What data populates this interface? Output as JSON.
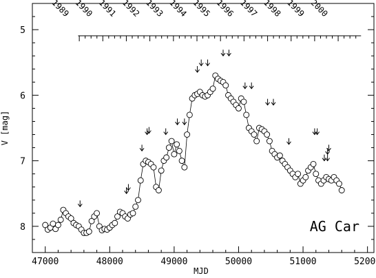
{
  "chart_data": {
    "type": "scatter",
    "xlabel": "MJD",
    "ylabel": "V [mag]",
    "xlim": [
      46800,
      52100
    ],
    "ylim": [
      8.4,
      4.6
    ],
    "y_inverted": true,
    "xticks": [
      47000,
      48000,
      49000,
      50000,
      51000,
      52000
    ],
    "xtick_labels": [
      "47000",
      "48000",
      "49000",
      "50000",
      "51000",
      "52000"
    ],
    "yticks": [
      5,
      6,
      7,
      8
    ],
    "ytick_labels": [
      "5",
      "6",
      "7",
      "8"
    ],
    "annotation": "AG Car",
    "top_axis": {
      "line_x": [
        47510,
        51900
      ],
      "years": [
        {
          "label": "1989",
          "mjd": 47528
        },
        {
          "label": "1990",
          "mjd": 47893
        },
        {
          "label": "1991",
          "mjd": 48258
        },
        {
          "label": "1992",
          "mjd": 48623
        },
        {
          "label": "1993",
          "mjd": 48989
        },
        {
          "label": "1994",
          "mjd": 49354
        },
        {
          "label": "1995",
          "mjd": 49719
        },
        {
          "label": "1996",
          "mjd": 50084
        },
        {
          "label": "1997",
          "mjd": 50450
        },
        {
          "label": "1998",
          "mjd": 50815
        },
        {
          "label": "1999",
          "mjd": 51180
        },
        {
          "label": "2000",
          "mjd": 51545
        }
      ]
    },
    "series": [
      {
        "x": [
          47000,
          47040,
          47080,
          47120,
          47160,
          47200,
          47240,
          47280,
          47320,
          47360,
          47400,
          47440,
          47480,
          47520,
          47560,
          47600,
          47640,
          47680,
          47720,
          47760,
          47800,
          47840,
          47880,
          47920,
          47960,
          48000,
          48040,
          48080,
          48120,
          48160,
          48200,
          48240,
          48280,
          48320,
          48360,
          48400,
          48440,
          48480,
          48520,
          48560,
          48600,
          48640,
          48680,
          48720,
          48760,
          48800,
          48840,
          48880,
          48920,
          48960,
          49000,
          49040,
          49080,
          49120,
          49160,
          49200,
          49240,
          49280,
          49320,
          49360,
          49400,
          49440,
          49480,
          49520,
          49560,
          49600,
          49640,
          49680,
          49720,
          49760,
          49800,
          49840,
          49880,
          49920,
          49960,
          50000,
          50040,
          50080,
          50120,
          50160,
          50200,
          50240,
          50280,
          50320,
          50360,
          50400,
          50440,
          50480,
          50520,
          50560,
          50600,
          50640,
          50680,
          50720,
          50760,
          50800,
          50840,
          50880,
          50920,
          50960,
          51000,
          51040,
          51080,
          51120,
          51160,
          51200,
          51240,
          51280,
          51320,
          51360,
          51400,
          51440,
          51480,
          51520,
          51560,
          51600
        ],
        "y": [
          7.98,
          8.05,
          8.02,
          7.96,
          8.04,
          7.98,
          7.9,
          7.75,
          7.8,
          7.85,
          7.88,
          7.95,
          7.98,
          8.0,
          8.05,
          8.1,
          8.1,
          8.08,
          7.92,
          7.85,
          7.8,
          8.0,
          8.06,
          8.04,
          8.05,
          8.02,
          7.98,
          7.95,
          7.85,
          7.78,
          7.8,
          7.85,
          7.88,
          7.82,
          7.8,
          7.7,
          7.6,
          7.3,
          7.05,
          7.0,
          7.02,
          7.05,
          7.1,
          7.4,
          7.45,
          7.15,
          7.0,
          6.95,
          6.8,
          6.7,
          6.9,
          6.75,
          6.85,
          7.0,
          7.1,
          6.6,
          6.3,
          6.05,
          6.0,
          5.98,
          5.95,
          6.0,
          6.02,
          6.0,
          5.95,
          5.9,
          5.7,
          5.75,
          5.78,
          5.8,
          5.85,
          6.0,
          6.05,
          6.1,
          6.15,
          6.2,
          6.05,
          6.1,
          6.3,
          6.5,
          6.55,
          6.6,
          6.7,
          6.5,
          6.52,
          6.55,
          6.6,
          6.7,
          6.85,
          6.9,
          6.95,
          6.92,
          7.0,
          7.05,
          7.1,
          7.15,
          7.2,
          7.25,
          7.2,
          7.35,
          7.3,
          7.25,
          7.15,
          7.1,
          7.05,
          7.2,
          7.3,
          7.35,
          7.3,
          7.25,
          7.28,
          7.3,
          7.25,
          7.3,
          7.35,
          7.45
        ]
      }
    ],
    "upper_limits": [
      {
        "x": 47540,
        "y": 7.7
      },
      {
        "x": 48260,
        "y": 7.5
      },
      {
        "x": 48290,
        "y": 7.45
      },
      {
        "x": 48500,
        "y": 6.85
      },
      {
        "x": 48580,
        "y": 6.6
      },
      {
        "x": 48610,
        "y": 6.58
      },
      {
        "x": 48870,
        "y": 6.6
      },
      {
        "x": 49050,
        "y": 6.45
      },
      {
        "x": 49160,
        "y": 6.45
      },
      {
        "x": 49360,
        "y": 5.65
      },
      {
        "x": 49420,
        "y": 5.55
      },
      {
        "x": 49520,
        "y": 5.55
      },
      {
        "x": 49760,
        "y": 5.4
      },
      {
        "x": 49850,
        "y": 5.4
      },
      {
        "x": 50100,
        "y": 5.9
      },
      {
        "x": 50200,
        "y": 5.9
      },
      {
        "x": 50450,
        "y": 6.15
      },
      {
        "x": 50540,
        "y": 6.15
      },
      {
        "x": 50780,
        "y": 6.75
      },
      {
        "x": 51180,
        "y": 6.6
      },
      {
        "x": 51220,
        "y": 6.6
      },
      {
        "x": 51330,
        "y": 7.0
      },
      {
        "x": 51380,
        "y": 7.0
      },
      {
        "x": 51380,
        "y": 6.9
      },
      {
        "x": 51400,
        "y": 6.85
      }
    ]
  }
}
